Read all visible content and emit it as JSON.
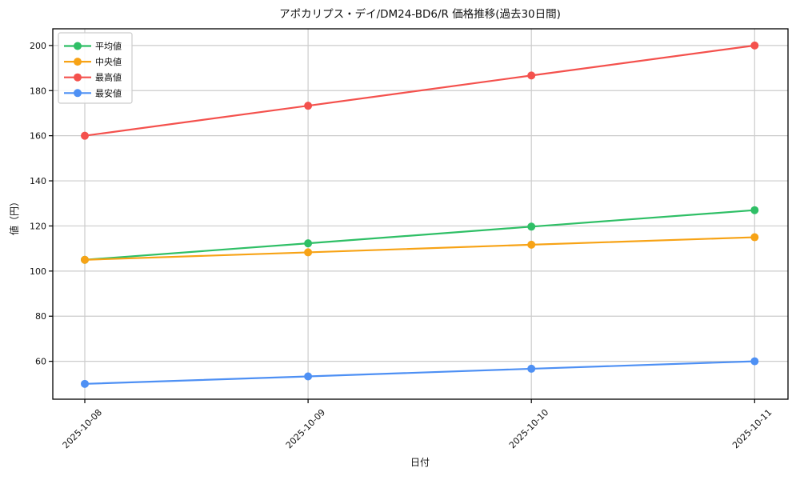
{
  "page": {
    "background": "#ffffff"
  },
  "chart_data": {
    "type": "line",
    "title": "アポカリプス・デイ/DM24-BD6/R 価格推移(過去30日間)",
    "xlabel": "日付",
    "ylabel": "値（円）",
    "categories": [
      "2025-10-08",
      "2025-10-09",
      "2025-10-10",
      "2025-10-11"
    ],
    "series": [
      {
        "id": "avg",
        "name": "平均値",
        "color": "#2fbf66",
        "values": [
          105,
          112.3,
          119.7,
          127
        ]
      },
      {
        "id": "median",
        "name": "中央値",
        "color": "#f7a316",
        "values": [
          105,
          108.3,
          111.7,
          115
        ]
      },
      {
        "id": "max",
        "name": "最高値",
        "color": "#f4514d",
        "values": [
          160,
          173.3,
          186.7,
          200
        ]
      },
      {
        "id": "min",
        "name": "最安値",
        "color": "#4e90f4",
        "values": [
          50,
          53.3,
          56.7,
          60
        ]
      }
    ],
    "yticks": [
      60,
      80,
      100,
      120,
      140,
      160,
      180,
      200
    ],
    "ylim": [
      43.2,
      207.4
    ],
    "grid": true,
    "grid_color": "#cccccc",
    "spine_color": "#000000",
    "legend_position": "upper-left",
    "marker": "circle",
    "marker_radius": 5,
    "line_width": 2.2
  }
}
